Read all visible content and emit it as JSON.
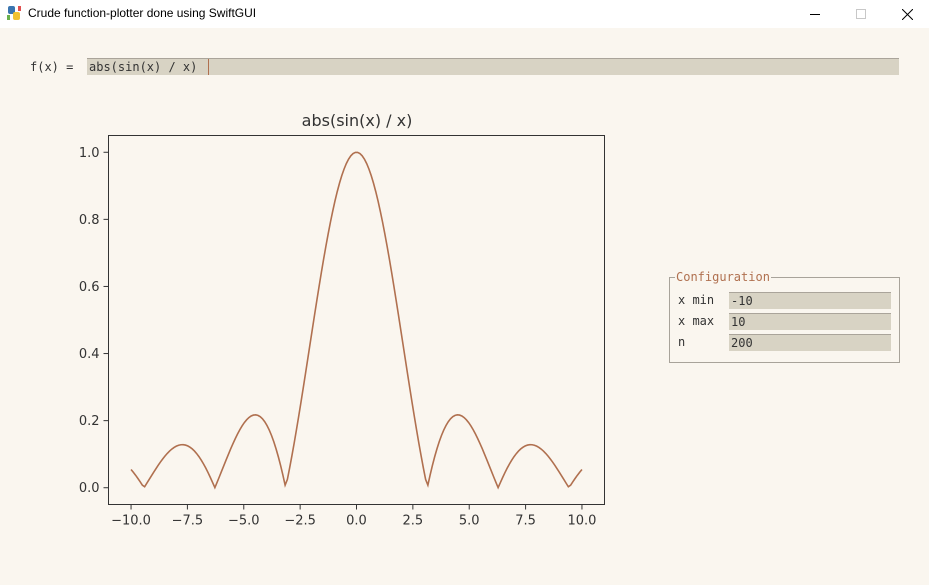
{
  "window": {
    "title": "Crude function-plotter done using SwiftGUI",
    "icon": "python-icon"
  },
  "function_row": {
    "label": "f(x) =",
    "value": "abs(sin(x) / x)"
  },
  "config": {
    "legend": "Configuration",
    "fields": [
      {
        "label": "x min",
        "value": "-10"
      },
      {
        "label": "x max",
        "value": "10"
      },
      {
        "label": "n",
        "value": "200"
      }
    ]
  },
  "colors": {
    "line": "#b0704f",
    "accent": "#b0704f",
    "background": "#faf6ef",
    "input_bg": "#d8d3c4"
  },
  "chart_data": {
    "type": "line",
    "title": "abs(sin(x) / x)",
    "function": "abs(sin(x) / x)",
    "x_range": [
      -10,
      10
    ],
    "n": 200,
    "xlim": [
      -11,
      11
    ],
    "ylim": [
      -0.05,
      1.05
    ],
    "xticks": [
      -10.0,
      -7.5,
      -5.0,
      -2.5,
      0.0,
      2.5,
      5.0,
      7.5,
      10.0
    ],
    "xtick_labels": [
      "−10.0",
      "−7.5",
      "−5.0",
      "−2.5",
      "0.0",
      "2.5",
      "5.0",
      "7.5",
      "10.0"
    ],
    "yticks": [
      0.0,
      0.2,
      0.4,
      0.6,
      0.8,
      1.0
    ],
    "ytick_labels": [
      "0.0",
      "0.2",
      "0.4",
      "0.6",
      "0.8",
      "1.0"
    ],
    "grid": false
  }
}
